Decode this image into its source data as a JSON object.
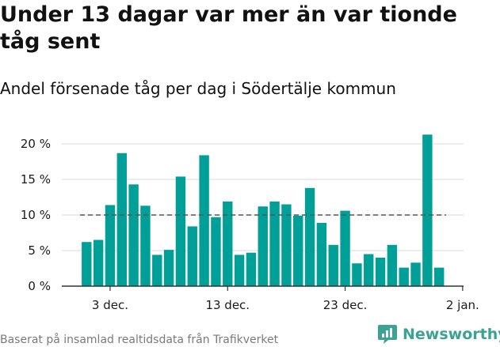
{
  "title": "Under 13 dagar var mer än var tionde tåg sent",
  "subtitle": "Andel försenade tåg per dag i Södertälje kommun",
  "source": "Baserat på insamlad realtidsdata från Trafikverket",
  "brand": {
    "name": "Newsworthy",
    "icon": "newsworthy-logo-icon",
    "color": "#3aa394"
  },
  "colors": {
    "bar": "#00a098",
    "reference_line": "#555555",
    "grid": "#d9d9d9",
    "axis": "#333333"
  },
  "chart_data": {
    "type": "bar",
    "title": "Under 13 dagar var mer än var tionde tåg sent",
    "subtitle": "Andel försenade tåg per dag i Södertälje kommun",
    "xlabel": "",
    "ylabel": "",
    "categories": [
      "2023-12-01",
      "2023-12-02",
      "2023-12-03",
      "2023-12-04",
      "2023-12-05",
      "2023-12-06",
      "2023-12-07",
      "2023-12-08",
      "2023-12-09",
      "2023-12-10",
      "2023-12-11",
      "2023-12-12",
      "2023-12-13",
      "2023-12-14",
      "2023-12-15",
      "2023-12-16",
      "2023-12-17",
      "2023-12-18",
      "2023-12-19",
      "2023-12-20",
      "2023-12-21",
      "2023-12-22",
      "2023-12-23",
      "2023-12-24",
      "2023-12-25",
      "2023-12-26",
      "2023-12-27",
      "2023-12-28",
      "2023-12-29",
      "2023-12-30",
      "2023-12-31"
    ],
    "values": [
      6.2,
      6.5,
      11.4,
      18.7,
      14.3,
      11.3,
      4.4,
      5.1,
      15.4,
      8.4,
      18.4,
      9.7,
      11.9,
      4.4,
      4.7,
      11.2,
      11.9,
      11.5,
      9.9,
      13.8,
      8.9,
      5.8,
      10.6,
      3.2,
      4.5,
      4.0,
      5.8,
      2.6,
      3.3,
      21.3,
      2.6
    ],
    "reference_line": 10,
    "ylim": [
      0,
      20
    ],
    "yticks": [
      0,
      5,
      10,
      15,
      20
    ],
    "ytick_labels": [
      "0 %",
      "5 %",
      "10 %",
      "15 %",
      "20 %"
    ],
    "xticks": [
      {
        "label": "3 dec.",
        "index": 2
      },
      {
        "label": "13 dec.",
        "index": 12
      },
      {
        "label": "23 dec.",
        "index": 22
      },
      {
        "label": "2 jan.",
        "index": 32
      }
    ],
    "grid": true
  }
}
